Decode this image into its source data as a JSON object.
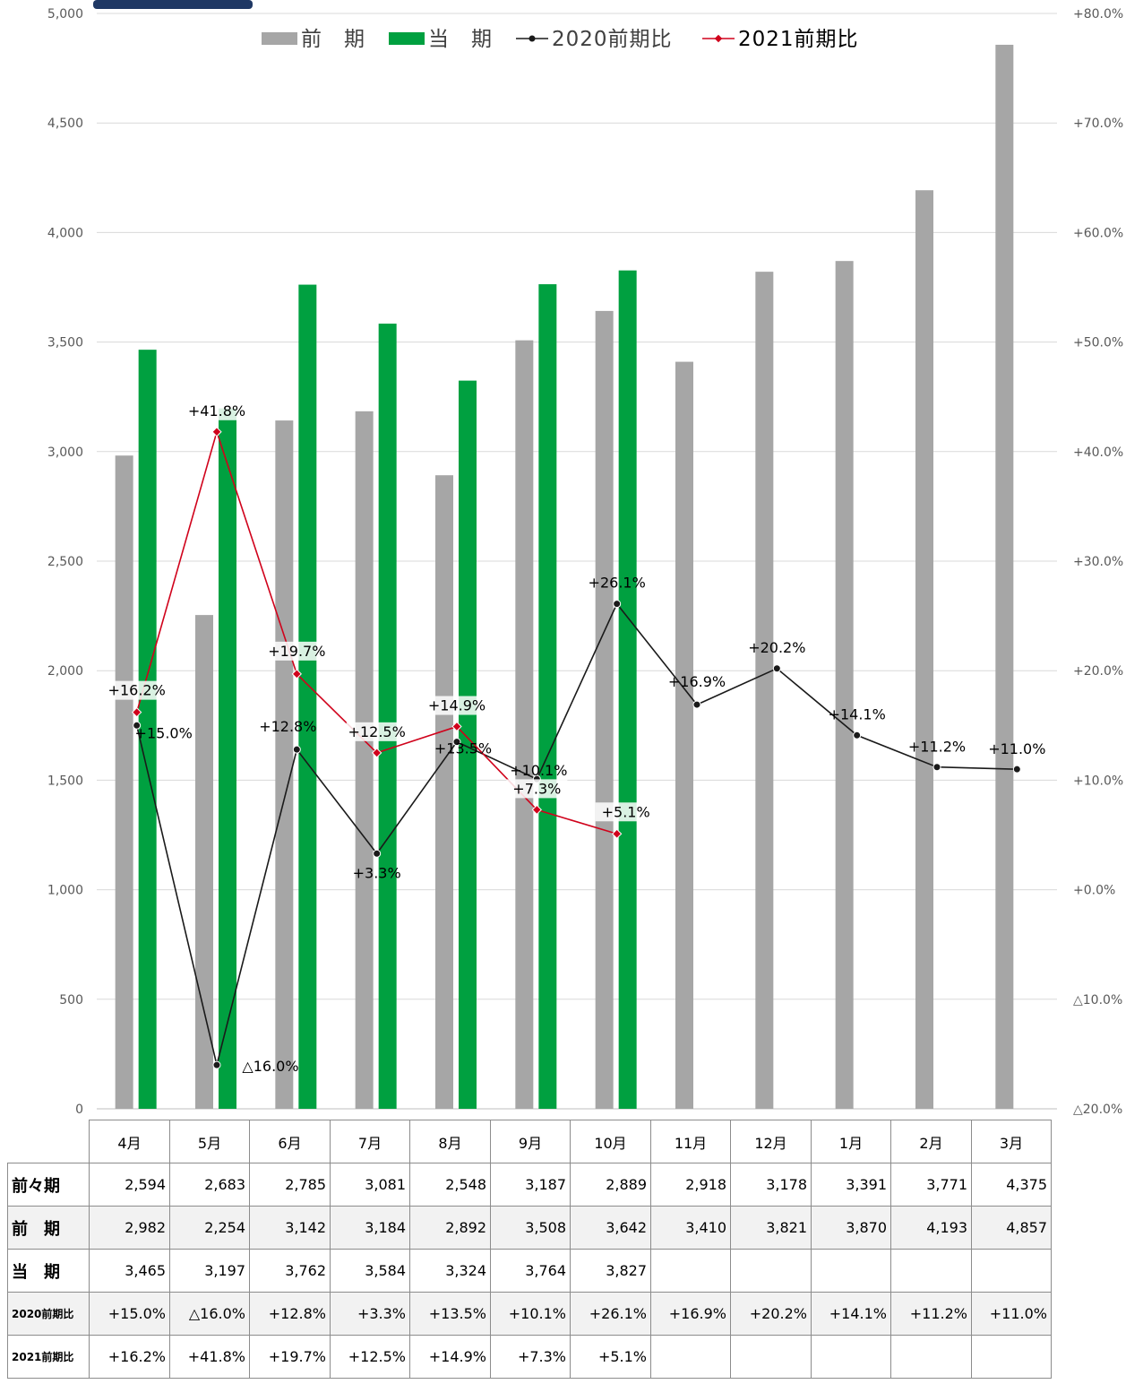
{
  "chart_data": {
    "type": "bar",
    "categories": [
      "4月",
      "5月",
      "6月",
      "7月",
      "8月",
      "9月",
      "10月",
      "11月",
      "12月",
      "1月",
      "2月",
      "3月"
    ],
    "series": [
      {
        "name": "前　期",
        "kind": "bar",
        "color": "#a6a6a6",
        "values": [
          2982,
          2254,
          3142,
          3184,
          2892,
          3508,
          3642,
          3410,
          3821,
          3870,
          4193,
          4857
        ]
      },
      {
        "name": "当　期",
        "kind": "bar",
        "color": "#00a040",
        "values": [
          3465,
          3197,
          3762,
          3584,
          3324,
          3764,
          3827,
          null,
          null,
          null,
          null,
          null
        ]
      },
      {
        "name": "2020前期比",
        "kind": "line",
        "axis": "right",
        "color": "#1a1a1a",
        "values": [
          15.0,
          -16.0,
          12.8,
          3.3,
          13.5,
          10.1,
          26.1,
          16.9,
          20.2,
          14.1,
          11.2,
          11.0
        ]
      },
      {
        "name": "2021前期比",
        "kind": "line",
        "axis": "right",
        "color": "#d0021b",
        "values": [
          16.2,
          41.8,
          19.7,
          12.5,
          14.9,
          7.3,
          5.1,
          null,
          null,
          null,
          null,
          null
        ]
      }
    ],
    "line_labels_2020": [
      "+15.0%",
      "△16.0%",
      "+12.8%",
      "+3.3%",
      "+13.5%",
      "+10.1%",
      "+26.1%",
      "+16.9%",
      "+20.2%",
      "+14.1%",
      "+11.2%",
      "+11.0%"
    ],
    "line_labels_2021": [
      "+16.2%",
      "+41.8%",
      "+19.7%",
      "+12.5%",
      "+14.9%",
      "+7.3%",
      "+5.1%"
    ],
    "ylim": [
      0,
      5000
    ],
    "y_ticks": [
      0,
      500,
      1000,
      1500,
      2000,
      2500,
      3000,
      3500,
      4000,
      4500,
      5000
    ],
    "y_tick_labels": [
      "0",
      "500",
      "1,000",
      "1,500",
      "2,000",
      "2,500",
      "3,000",
      "3,500",
      "4,000",
      "4,500",
      "5,000"
    ],
    "y2lim": [
      -20,
      80
    ],
    "y2_ticks": [
      -20,
      -10,
      0,
      10,
      20,
      30,
      40,
      50,
      60,
      70,
      80
    ],
    "y2_tick_labels": [
      "△20.0%",
      "△10.0%",
      "+0.0%",
      "+10.0%",
      "+20.0%",
      "+30.0%",
      "+40.0%",
      "+50.0%",
      "+60.0%",
      "+70.0%",
      "+80.0%"
    ],
    "grid": true,
    "legend_position": "top"
  },
  "table": {
    "months": [
      "4月",
      "5月",
      "6月",
      "7月",
      "8月",
      "9月",
      "10月",
      "11月",
      "12月",
      "1月",
      "2月",
      "3月"
    ],
    "rows": [
      {
        "label": "前々期",
        "values": [
          "2,594",
          "2,683",
          "2,785",
          "3,081",
          "2,548",
          "3,187",
          "2,889",
          "2,918",
          "3,178",
          "3,391",
          "3,771",
          "4,375"
        ]
      },
      {
        "label": "前　期",
        "values": [
          "2,982",
          "2,254",
          "3,142",
          "3,184",
          "2,892",
          "3,508",
          "3,642",
          "3,410",
          "3,821",
          "3,870",
          "4,193",
          "4,857"
        ]
      },
      {
        "label": "当　期",
        "values": [
          "3,465",
          "3,197",
          "3,762",
          "3,584",
          "3,324",
          "3,764",
          "3,827",
          "",
          "",
          "",
          "",
          ""
        ]
      },
      {
        "label": "2020前期比",
        "values": [
          "+15.0%",
          "△16.0%",
          "+12.8%",
          "+3.3%",
          "+13.5%",
          "+10.1%",
          "+26.1%",
          "+16.9%",
          "+20.2%",
          "+14.1%",
          "+11.2%",
          "+11.0%"
        ]
      },
      {
        "label": "2021前期比",
        "values": [
          "+16.2%",
          "+41.8%",
          "+19.7%",
          "+12.5%",
          "+14.9%",
          "+7.3%",
          "+5.1%",
          "",
          "",
          "",
          "",
          ""
        ]
      }
    ]
  },
  "colors": {
    "header_badge": "#1f3864"
  }
}
